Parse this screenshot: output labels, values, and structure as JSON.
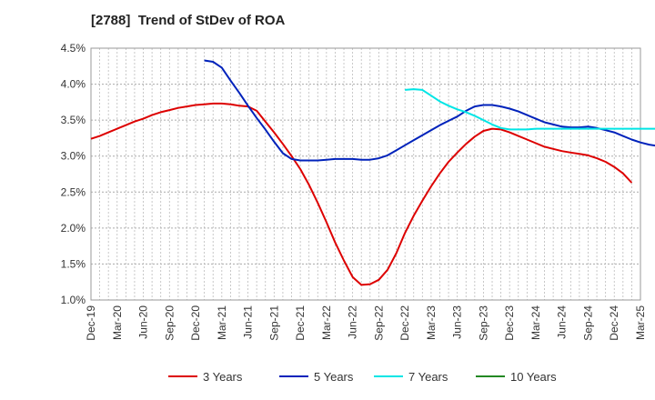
{
  "chart_data": {
    "type": "line",
    "title": "[2788]  Trend of StDev of ROA",
    "xlabel": "",
    "ylabel": "",
    "x_ticks": [
      "Dec-19",
      "Mar-20",
      "Jun-20",
      "Sep-20",
      "Dec-20",
      "Mar-21",
      "Jun-21",
      "Sep-21",
      "Dec-21",
      "Mar-22",
      "Jun-22",
      "Sep-22",
      "Dec-22",
      "Mar-23",
      "Jun-23",
      "Sep-23",
      "Dec-23",
      "Mar-24",
      "Jun-24",
      "Sep-24",
      "Dec-24",
      "Mar-25"
    ],
    "y_ticks": [
      "1.0%",
      "1.5%",
      "2.0%",
      "2.5%",
      "3.0%",
      "3.5%",
      "4.0%",
      "4.5%"
    ],
    "ylim": [
      1.0,
      4.5
    ],
    "grid": true,
    "legend_position": "bottom",
    "series": [
      {
        "name": "3 Years",
        "color": "#dd0000",
        "points": [
          [
            "Dec-19",
            3.24
          ],
          [
            "Jan-20",
            3.28
          ],
          [
            "Feb-20",
            3.33
          ],
          [
            "Mar-20",
            3.38
          ],
          [
            "Apr-20",
            3.43
          ],
          [
            "May-20",
            3.48
          ],
          [
            "Jun-20",
            3.52
          ],
          [
            "Jul-20",
            3.57
          ],
          [
            "Aug-20",
            3.61
          ],
          [
            "Sep-20",
            3.64
          ],
          [
            "Oct-20",
            3.67
          ],
          [
            "Nov-20",
            3.69
          ],
          [
            "Dec-20",
            3.71
          ],
          [
            "Jan-21",
            3.72
          ],
          [
            "Feb-21",
            3.73
          ],
          [
            "Mar-21",
            3.73
          ],
          [
            "Apr-21",
            3.72
          ],
          [
            "May-21",
            3.7
          ],
          [
            "Jun-21",
            3.69
          ],
          [
            "Jul-21",
            3.63
          ],
          [
            "Aug-21",
            3.48
          ],
          [
            "Sep-21",
            3.33
          ],
          [
            "Oct-21",
            3.17
          ],
          [
            "Nov-21",
            3.0
          ],
          [
            "Dec-21",
            2.82
          ],
          [
            "Jan-22",
            2.6
          ],
          [
            "Feb-22",
            2.35
          ],
          [
            "Mar-22",
            2.08
          ],
          [
            "Apr-22",
            1.8
          ],
          [
            "May-22",
            1.55
          ],
          [
            "Jun-22",
            1.32
          ],
          [
            "Jul-22",
            1.21
          ],
          [
            "Aug-22",
            1.22
          ],
          [
            "Sep-22",
            1.28
          ],
          [
            "Oct-22",
            1.42
          ],
          [
            "Nov-22",
            1.65
          ],
          [
            "Dec-22",
            1.93
          ],
          [
            "Jan-23",
            2.17
          ],
          [
            "Feb-23",
            2.38
          ],
          [
            "Mar-23",
            2.58
          ],
          [
            "Apr-23",
            2.76
          ],
          [
            "May-23",
            2.92
          ],
          [
            "Jun-23",
            3.05
          ],
          [
            "Jul-23",
            3.17
          ],
          [
            "Aug-23",
            3.27
          ],
          [
            "Sep-23",
            3.35
          ],
          [
            "Oct-23",
            3.38
          ],
          [
            "Nov-23",
            3.37
          ],
          [
            "Dec-23",
            3.33
          ],
          [
            "Jan-24",
            3.28
          ],
          [
            "Feb-24",
            3.23
          ],
          [
            "Mar-24",
            3.18
          ],
          [
            "Apr-24",
            3.13
          ],
          [
            "May-24",
            3.1
          ],
          [
            "Jun-24",
            3.07
          ],
          [
            "Jul-24",
            3.05
          ],
          [
            "Aug-24",
            3.03
          ],
          [
            "Sep-24",
            3.01
          ],
          [
            "Oct-24",
            2.97
          ],
          [
            "Nov-24",
            2.92
          ],
          [
            "Dec-24",
            2.85
          ],
          [
            "Jan-25",
            2.76
          ],
          [
            "Feb-25",
            2.63
          ]
        ]
      },
      {
        "name": "5 Years",
        "color": "#0022bb",
        "points": [
          [
            "Jan-21",
            4.33
          ],
          [
            "Feb-21",
            4.31
          ],
          [
            "Mar-21",
            4.23
          ],
          [
            "Apr-21",
            4.05
          ],
          [
            "May-21",
            3.88
          ],
          [
            "Jun-21",
            3.7
          ],
          [
            "Jul-21",
            3.53
          ],
          [
            "Aug-21",
            3.37
          ],
          [
            "Sep-21",
            3.2
          ],
          [
            "Oct-21",
            3.04
          ],
          [
            "Nov-21",
            2.96
          ],
          [
            "Dec-21",
            2.94
          ],
          [
            "Jan-22",
            2.94
          ],
          [
            "Feb-22",
            2.94
          ],
          [
            "Mar-22",
            2.95
          ],
          [
            "Apr-22",
            2.96
          ],
          [
            "May-22",
            2.96
          ],
          [
            "Jun-22",
            2.96
          ],
          [
            "Jul-22",
            2.95
          ],
          [
            "Aug-22",
            2.95
          ],
          [
            "Sep-22",
            2.97
          ],
          [
            "Oct-22",
            3.01
          ],
          [
            "Nov-22",
            3.08
          ],
          [
            "Dec-22",
            3.15
          ],
          [
            "Jan-23",
            3.22
          ],
          [
            "Feb-23",
            3.29
          ],
          [
            "Mar-23",
            3.36
          ],
          [
            "Apr-23",
            3.43
          ],
          [
            "May-23",
            3.49
          ],
          [
            "Jun-23",
            3.55
          ],
          [
            "Jul-23",
            3.63
          ],
          [
            "Aug-23",
            3.69
          ],
          [
            "Sep-23",
            3.71
          ],
          [
            "Oct-23",
            3.71
          ],
          [
            "Nov-23",
            3.69
          ],
          [
            "Dec-23",
            3.66
          ],
          [
            "Jan-24",
            3.62
          ],
          [
            "Feb-24",
            3.57
          ],
          [
            "Mar-24",
            3.52
          ],
          [
            "Apr-24",
            3.47
          ],
          [
            "May-24",
            3.44
          ],
          [
            "Jun-24",
            3.41
          ],
          [
            "Jul-24",
            3.4
          ],
          [
            "Aug-24",
            3.4
          ],
          [
            "Sep-24",
            3.41
          ],
          [
            "Oct-24",
            3.39
          ],
          [
            "Nov-24",
            3.36
          ],
          [
            "Dec-24",
            3.33
          ],
          [
            "Jan-25",
            3.28
          ],
          [
            "Feb-25",
            3.23
          ],
          [
            "Mar-25",
            3.19
          ],
          [
            "Apr-25",
            3.16
          ],
          [
            "May-25",
            3.14
          ]
        ]
      },
      {
        "name": "7 Years",
        "color": "#00e5e5",
        "points": [
          [
            "Dec-22",
            3.92
          ],
          [
            "Jan-23",
            3.93
          ],
          [
            "Feb-23",
            3.92
          ],
          [
            "Mar-23",
            3.84
          ],
          [
            "Apr-23",
            3.76
          ],
          [
            "May-23",
            3.7
          ],
          [
            "Jun-23",
            3.65
          ],
          [
            "Jul-23",
            3.61
          ],
          [
            "Aug-23",
            3.56
          ],
          [
            "Sep-23",
            3.5
          ],
          [
            "Oct-23",
            3.44
          ],
          [
            "Nov-23",
            3.39
          ],
          [
            "Dec-23",
            3.37
          ],
          [
            "Jan-24",
            3.37
          ],
          [
            "Feb-24",
            3.37
          ],
          [
            "Mar-24",
            3.38
          ],
          [
            "Apr-24",
            3.38
          ],
          [
            "May-24",
            3.38
          ],
          [
            "Jun-24",
            3.38
          ],
          [
            "Jul-24",
            3.38
          ],
          [
            "Aug-24",
            3.38
          ],
          [
            "Sep-24",
            3.38
          ],
          [
            "Oct-24",
            3.38
          ],
          [
            "Nov-24",
            3.38
          ],
          [
            "Dec-24",
            3.38
          ],
          [
            "Jan-25",
            3.38
          ],
          [
            "Feb-25",
            3.38
          ],
          [
            "Mar-25",
            3.38
          ],
          [
            "Apr-25",
            3.38
          ],
          [
            "May-25",
            3.38
          ]
        ]
      },
      {
        "name": "10 Years",
        "color": "#228822",
        "points": []
      }
    ]
  }
}
